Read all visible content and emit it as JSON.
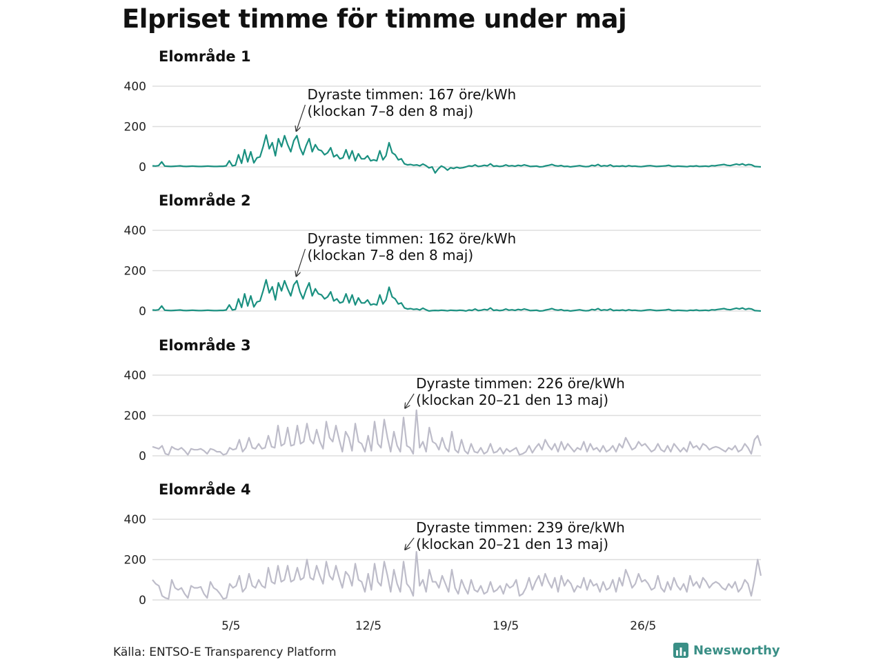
{
  "title": "Elpriset timme för timme under maj",
  "source": "Källa: ENTSO-E Transparency Platform",
  "brand": {
    "name": "Newsworthy",
    "icon": "newsworthy-logo-icon"
  },
  "colors": {
    "northern": "#1a9080",
    "southern": "#bdbcc9",
    "grid": "#dddddd",
    "brand": "#3a8f86"
  },
  "chart_data": [
    {
      "type": "line",
      "title": "Elområde 1",
      "ylim": [
        0,
        400
      ],
      "yticks": [
        0,
        200,
        400
      ],
      "xticks": [
        "5/5",
        "12/5",
        "19/5",
        "26/5"
      ],
      "color": "#1a9080",
      "annotation": {
        "line1": "Dyraste timmen: 167 öre/kWh",
        "line2": "(klockan 7–8 den 8 maj)",
        "day": 8,
        "hour": 7,
        "value": 167
      },
      "series": [
        {
          "values": [
            5,
            4,
            6,
            25,
            4,
            3,
            2,
            3,
            4,
            5,
            3,
            2,
            3,
            4,
            3,
            2,
            2,
            3,
            4,
            3,
            2,
            2,
            3,
            3,
            5,
            30,
            5,
            8,
            60,
            18,
            85,
            25,
            75,
            20,
            45,
            50,
            100,
            158,
            90,
            120,
            55,
            140,
            100,
            155,
            110,
            75,
            130,
            155,
            95,
            60,
            105,
            140,
            75,
            110,
            85,
            80,
            60,
            70,
            95,
            50,
            60,
            40,
            45,
            85,
            40,
            80,
            30,
            65,
            40,
            40,
            55,
            30,
            35,
            30,
            80,
            35,
            55,
            120,
            70,
            60,
            35,
            40,
            15,
            10,
            12,
            8,
            10,
            5,
            14,
            6,
            -5,
            0,
            -30,
            -10,
            4,
            -3,
            -16,
            -4,
            -8,
            -2,
            -6,
            -4,
            0,
            5,
            3,
            10,
            2,
            4,
            8,
            5,
            15,
            3,
            5,
            2,
            4,
            10,
            4,
            6,
            3,
            8,
            5,
            10,
            6,
            2,
            3,
            4,
            0,
            1,
            5,
            8,
            12,
            6,
            4,
            7,
            2,
            3,
            0,
            2,
            4,
            6,
            3,
            1,
            2,
            8,
            5,
            12,
            3,
            6,
            4,
            10,
            2,
            4,
            3,
            5,
            2,
            6,
            3,
            4,
            2,
            1,
            3,
            5,
            6,
            4,
            2,
            3,
            4,
            5,
            8,
            3,
            2,
            4,
            3,
            2,
            1,
            4,
            3,
            5,
            2,
            3,
            4,
            2,
            6,
            5,
            8,
            10,
            12,
            8,
            6,
            10,
            14,
            10,
            15,
            8,
            12,
            10,
            2,
            1,
            0
          ]
        }
      ]
    },
    {
      "type": "line",
      "title": "Elområde 2",
      "ylim": [
        0,
        400
      ],
      "yticks": [
        0,
        200,
        400
      ],
      "xticks": [
        "5/5",
        "12/5",
        "19/5",
        "26/5"
      ],
      "color": "#1a9080",
      "annotation": {
        "line1": "Dyraste timmen: 162 öre/kWh",
        "line2": "(klockan 7–8 den 8 maj)",
        "day": 8,
        "hour": 7,
        "value": 162
      },
      "series": [
        {
          "values": [
            5,
            4,
            6,
            25,
            4,
            3,
            2,
            3,
            4,
            5,
            3,
            2,
            3,
            4,
            3,
            2,
            2,
            3,
            4,
            3,
            2,
            2,
            3,
            3,
            5,
            30,
            5,
            8,
            60,
            18,
            85,
            25,
            75,
            20,
            45,
            50,
            100,
            155,
            90,
            120,
            55,
            140,
            100,
            150,
            110,
            75,
            130,
            150,
            95,
            60,
            105,
            140,
            75,
            110,
            85,
            80,
            60,
            70,
            95,
            50,
            60,
            40,
            45,
            85,
            40,
            80,
            30,
            65,
            40,
            40,
            55,
            30,
            35,
            30,
            80,
            35,
            55,
            118,
            70,
            60,
            35,
            40,
            15,
            10,
            12,
            8,
            10,
            5,
            14,
            6,
            0,
            2,
            3,
            2,
            4,
            3,
            1,
            4,
            3,
            2,
            4,
            3,
            0,
            5,
            3,
            10,
            2,
            4,
            8,
            5,
            15,
            3,
            5,
            2,
            4,
            10,
            4,
            6,
            3,
            8,
            5,
            10,
            6,
            2,
            3,
            4,
            0,
            1,
            5,
            8,
            12,
            6,
            4,
            7,
            2,
            3,
            0,
            2,
            4,
            6,
            3,
            1,
            2,
            8,
            5,
            12,
            3,
            6,
            4,
            10,
            2,
            4,
            3,
            5,
            2,
            6,
            3,
            4,
            2,
            1,
            3,
            5,
            6,
            4,
            2,
            3,
            4,
            5,
            8,
            3,
            2,
            4,
            3,
            2,
            1,
            4,
            3,
            5,
            2,
            3,
            4,
            2,
            6,
            5,
            8,
            10,
            12,
            8,
            6,
            10,
            14,
            10,
            15,
            8,
            12,
            10,
            2,
            1,
            0
          ]
        }
      ]
    },
    {
      "type": "line",
      "title": "Elområde 3",
      "ylim": [
        0,
        400
      ],
      "yticks": [
        0,
        200,
        400
      ],
      "xticks": [
        "5/5",
        "12/5",
        "19/5",
        "26/5"
      ],
      "color": "#bdbcc9",
      "annotation": {
        "line1": "Dyraste timmen: 226 öre/kWh",
        "line2": "(klockan 20–21 den 13 maj)",
        "day": 13,
        "hour": 20,
        "value": 226
      },
      "series": [
        {
          "values": [
            45,
            40,
            35,
            50,
            10,
            5,
            45,
            35,
            30,
            40,
            25,
            5,
            35,
            30,
            30,
            35,
            25,
            10,
            35,
            30,
            20,
            20,
            5,
            10,
            40,
            30,
            35,
            80,
            20,
            40,
            90,
            40,
            35,
            60,
            35,
            40,
            100,
            45,
            40,
            150,
            50,
            60,
            140,
            50,
            55,
            150,
            60,
            70,
            160,
            80,
            60,
            130,
            70,
            35,
            170,
            90,
            70,
            150,
            80,
            20,
            120,
            90,
            25,
            160,
            70,
            60,
            20,
            100,
            25,
            170,
            60,
            40,
            180,
            90,
            20,
            120,
            50,
            20,
            190,
            50,
            40,
            10,
            226,
            40,
            70,
            20,
            140,
            70,
            60,
            30,
            90,
            40,
            20,
            120,
            30,
            15,
            80,
            25,
            10,
            60,
            20,
            15,
            40,
            10,
            20,
            60,
            15,
            20,
            40,
            10,
            35,
            20,
            30,
            40,
            5,
            10,
            20,
            50,
            15,
            40,
            60,
            30,
            80,
            50,
            30,
            60,
            20,
            70,
            30,
            60,
            40,
            20,
            40,
            30,
            70,
            20,
            60,
            30,
            40,
            20,
            50,
            20,
            30,
            50,
            20,
            60,
            40,
            90,
            60,
            30,
            40,
            70,
            50,
            60,
            40,
            20,
            30,
            60,
            30,
            20,
            50,
            20,
            60,
            40,
            20,
            40,
            20,
            70,
            40,
            50,
            30,
            60,
            50,
            30,
            40,
            45,
            40,
            30,
            20,
            40,
            30,
            50,
            20,
            30,
            60,
            40,
            10,
            80,
            100,
            50
          ]
        }
      ]
    },
    {
      "type": "line",
      "title": "Elområde 4",
      "ylim": [
        0,
        400
      ],
      "yticks": [
        0,
        200,
        400
      ],
      "xticks": [
        "5/5",
        "12/5",
        "19/5",
        "26/5"
      ],
      "color": "#bdbcc9",
      "annotation": {
        "line1": "Dyraste timmen: 239 öre/kWh",
        "line2": "(klockan 20–21 den 13 maj)",
        "day": 13,
        "hour": 20,
        "value": 239
      },
      "series": [
        {
          "values": [
            100,
            80,
            70,
            20,
            10,
            5,
            100,
            60,
            50,
            60,
            30,
            10,
            70,
            60,
            60,
            65,
            30,
            10,
            90,
            60,
            50,
            30,
            5,
            10,
            80,
            60,
            70,
            120,
            40,
            60,
            130,
            70,
            60,
            100,
            70,
            60,
            160,
            90,
            80,
            170,
            90,
            100,
            170,
            90,
            100,
            160,
            100,
            110,
            200,
            110,
            100,
            170,
            120,
            80,
            190,
            120,
            100,
            170,
            110,
            60,
            140,
            120,
            70,
            180,
            100,
            90,
            40,
            130,
            50,
            180,
            90,
            70,
            190,
            120,
            40,
            150,
            80,
            40,
            190,
            80,
            60,
            20,
            239,
            70,
            100,
            40,
            150,
            90,
            90,
            60,
            120,
            80,
            40,
            150,
            60,
            30,
            100,
            60,
            30,
            100,
            50,
            40,
            70,
            30,
            40,
            90,
            40,
            50,
            70,
            30,
            80,
            60,
            70,
            100,
            20,
            30,
            60,
            110,
            50,
            90,
            120,
            70,
            130,
            90,
            60,
            110,
            40,
            120,
            70,
            100,
            80,
            40,
            70,
            60,
            110,
            50,
            100,
            70,
            80,
            40,
            90,
            50,
            60,
            100,
            40,
            110,
            70,
            150,
            110,
            60,
            80,
            130,
            90,
            100,
            80,
            50,
            60,
            120,
            60,
            40,
            90,
            50,
            110,
            70,
            50,
            80,
            40,
            120,
            70,
            90,
            60,
            110,
            90,
            60,
            80,
            90,
            80,
            60,
            50,
            80,
            60,
            90,
            40,
            60,
            100,
            80,
            20,
            100,
            200,
            120
          ]
        }
      ]
    }
  ]
}
